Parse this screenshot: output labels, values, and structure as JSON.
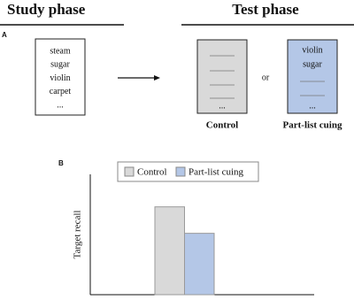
{
  "panel_a": {
    "label": "A",
    "study_title": "Study phase",
    "test_title": "Test phase",
    "study_words": [
      "steam",
      "sugar",
      "violin",
      "carpet",
      "..."
    ],
    "control_ellipsis": "...",
    "cue_words": [
      "violin",
      "sugar"
    ],
    "cue_ellipsis": "...",
    "or": "or",
    "control_label": "Control",
    "cuing_label": "Part-list cuing"
  },
  "chart_data": {
    "type": "bar",
    "label": "B",
    "y_label": "Target recall",
    "categories": [
      null
    ],
    "ylim": [
      0,
      1
    ],
    "series": [
      {
        "name": "Control",
        "color": "#d9d9d9",
        "values": [
          0.73
        ]
      },
      {
        "name": "Part-list cuing",
        "color": "#b4c7e7",
        "values": [
          0.51
        ]
      }
    ]
  }
}
